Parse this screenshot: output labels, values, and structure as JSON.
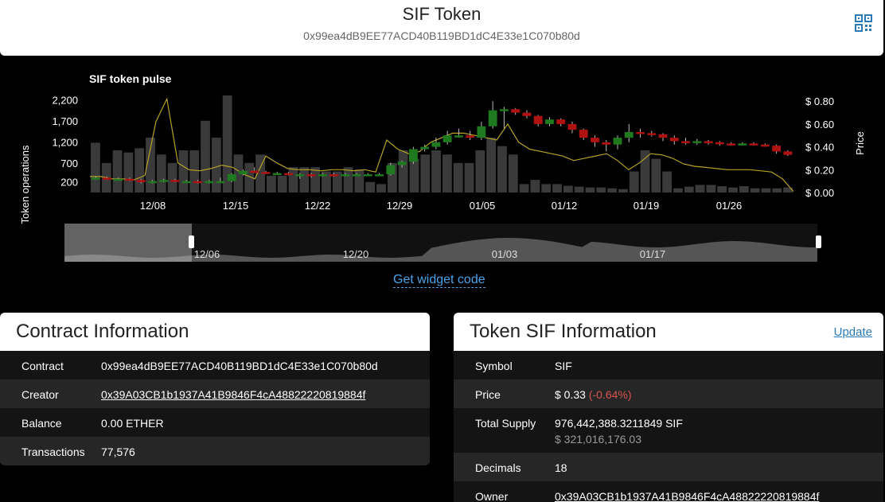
{
  "header": {
    "title": "SIF Token",
    "address": "0x99ea4dB9EE77ACD40B119BD1dC4E33e1C070b80d",
    "qr_icon": "qr-code-icon"
  },
  "chart_data": {
    "type": "candlestick+bar+line",
    "title": "SIF token pulse",
    "ylabel_left": "Token operations",
    "ylabel_right": "Price",
    "left_ticks": [
      "2,200",
      "1,700",
      "1,200",
      "700",
      "200"
    ],
    "right_ticks": [
      "$ 0.80",
      "$ 0.60",
      "$ 0.40",
      "$ 0.20",
      "$ 0.00"
    ],
    "x_ticks": [
      "12/08",
      "12/15",
      "12/22",
      "12/29",
      "01/05",
      "01/12",
      "01/19",
      "01/26"
    ],
    "navigator_ticks": [
      "12/06",
      "12/20",
      "01/03",
      "01/17"
    ],
    "operations": [
      1180,
      700,
      1000,
      950,
      1050,
      1300,
      900,
      700,
      1000,
      1000,
      1700,
      1300,
      2300,
      900,
      700,
      900,
      400,
      400,
      600,
      600,
      600,
      500,
      500,
      600,
      550,
      250,
      200,
      700,
      1000,
      800,
      900,
      1000,
      900,
      700,
      700,
      1000,
      1300,
      1100,
      900,
      200,
      300,
      200,
      200,
      160,
      140,
      120,
      120,
      100,
      80,
      500,
      1000,
      800,
      500,
      100,
      140,
      180,
      180,
      150,
      120,
      150,
      100,
      100,
      100,
      120
    ],
    "price_line": [
      0.14,
      0.14,
      0.12,
      0.12,
      0.11,
      0.15,
      0.62,
      0.82,
      0.26,
      0.2,
      0.19,
      0.21,
      0.24,
      0.22,
      0.16,
      0.12,
      0.32,
      0.26,
      0.21,
      0.2,
      0.2,
      0.19,
      0.2,
      0.2,
      0.19,
      0.2,
      0.18,
      0.46,
      0.38,
      0.34,
      0.36,
      0.44,
      0.48,
      0.52,
      0.52,
      0.5,
      0.48,
      0.46,
      0.6,
      0.44,
      0.38,
      0.36,
      0.34,
      0.32,
      0.28,
      0.3,
      0.32,
      0.34,
      0.28,
      0.2,
      0.26,
      0.34,
      0.33,
      0.3,
      0.25,
      0.23,
      0.22,
      0.21,
      0.2,
      0.2,
      0.2,
      0.19,
      0.18,
      0.12,
      0.01
    ],
    "candles": [
      [
        0.12,
        0.13,
        0.11,
        0.14
      ],
      [
        0.13,
        0.12,
        0.11,
        0.14
      ],
      [
        0.12,
        0.12,
        0.11,
        0.13
      ],
      [
        0.12,
        0.11,
        0.1,
        0.13
      ],
      [
        0.11,
        0.09,
        0.08,
        0.12
      ],
      [
        0.09,
        0.1,
        0.08,
        0.11
      ],
      [
        0.1,
        0.11,
        0.09,
        0.12
      ],
      [
        0.11,
        0.1,
        0.09,
        0.12
      ],
      [
        0.1,
        0.1,
        0.09,
        0.11
      ],
      [
        0.1,
        0.09,
        0.08,
        0.11
      ],
      [
        0.09,
        0.1,
        0.08,
        0.11
      ],
      [
        0.1,
        0.1,
        0.09,
        0.13
      ],
      [
        0.1,
        0.16,
        0.09,
        0.17
      ],
      [
        0.16,
        0.19,
        0.15,
        0.2
      ],
      [
        0.19,
        0.18,
        0.17,
        0.22
      ],
      [
        0.18,
        0.17,
        0.16,
        0.19
      ],
      [
        0.17,
        0.17,
        0.16,
        0.18
      ],
      [
        0.17,
        0.16,
        0.15,
        0.18
      ],
      [
        0.16,
        0.16,
        0.12,
        0.17
      ],
      [
        0.16,
        0.15,
        0.13,
        0.17
      ],
      [
        0.15,
        0.16,
        0.14,
        0.17
      ],
      [
        0.16,
        0.15,
        0.14,
        0.17
      ],
      [
        0.15,
        0.16,
        0.14,
        0.17
      ],
      [
        0.16,
        0.16,
        0.15,
        0.17
      ],
      [
        0.16,
        0.16,
        0.15,
        0.17
      ],
      [
        0.16,
        0.16,
        0.15,
        0.17
      ],
      [
        0.16,
        0.24,
        0.15,
        0.26
      ],
      [
        0.24,
        0.27,
        0.22,
        0.28
      ],
      [
        0.27,
        0.38,
        0.25,
        0.4
      ],
      [
        0.38,
        0.4,
        0.36,
        0.42
      ],
      [
        0.4,
        0.44,
        0.38,
        0.48
      ],
      [
        0.44,
        0.5,
        0.42,
        0.54
      ],
      [
        0.5,
        0.5,
        0.48,
        0.56
      ],
      [
        0.5,
        0.48,
        0.46,
        0.54
      ],
      [
        0.48,
        0.58,
        0.46,
        0.62
      ],
      [
        0.58,
        0.72,
        0.56,
        0.8
      ],
      [
        0.72,
        0.73,
        0.56,
        0.75
      ],
      [
        0.73,
        0.7,
        0.68,
        0.74
      ],
      [
        0.7,
        0.67,
        0.65,
        0.72
      ],
      [
        0.67,
        0.6,
        0.58,
        0.68
      ],
      [
        0.6,
        0.64,
        0.58,
        0.66
      ],
      [
        0.64,
        0.6,
        0.58,
        0.65
      ],
      [
        0.6,
        0.55,
        0.52,
        0.62
      ],
      [
        0.55,
        0.48,
        0.46,
        0.56
      ],
      [
        0.48,
        0.44,
        0.4,
        0.5
      ],
      [
        0.44,
        0.42,
        0.36,
        0.46
      ],
      [
        0.42,
        0.48,
        0.38,
        0.5
      ],
      [
        0.48,
        0.53,
        0.44,
        0.6
      ],
      [
        0.53,
        0.52,
        0.48,
        0.56
      ],
      [
        0.52,
        0.51,
        0.49,
        0.54
      ],
      [
        0.51,
        0.48,
        0.45,
        0.52
      ],
      [
        0.48,
        0.45,
        0.42,
        0.5
      ],
      [
        0.45,
        0.44,
        0.42,
        0.48
      ],
      [
        0.44,
        0.45,
        0.42,
        0.47
      ],
      [
        0.45,
        0.44,
        0.42,
        0.46
      ],
      [
        0.44,
        0.43,
        0.41,
        0.45
      ],
      [
        0.43,
        0.42,
        0.41,
        0.44
      ],
      [
        0.42,
        0.43,
        0.41,
        0.44
      ],
      [
        0.43,
        0.42,
        0.41,
        0.44
      ],
      [
        0.42,
        0.41,
        0.4,
        0.43
      ],
      [
        0.41,
        0.36,
        0.34,
        0.42
      ],
      [
        0.36,
        0.33,
        0.32,
        0.37
      ]
    ],
    "colors": {
      "up": "#1f7a1f",
      "down": "#b01212",
      "price_line": "#b5a225",
      "bars": "#3a3a3a"
    }
  },
  "widget_link": "Get widget code",
  "contract": {
    "title": "Contract Information",
    "rows": [
      {
        "key": "Contract",
        "value": "0x99ea4dB9EE77ACD40B119BD1dC4E33e1C070b80d"
      },
      {
        "key": "Creator",
        "value": "0x39A03CB1b1937A41B9846F4cA48822220819884f"
      },
      {
        "key": "Balance",
        "value": "0.00 ETHER"
      },
      {
        "key": "Transactions",
        "value": "77,576"
      }
    ]
  },
  "token": {
    "title": "Token SIF Information",
    "update_label": "Update",
    "rows": [
      {
        "key": "Symbol",
        "value": "SIF"
      },
      {
        "key": "Price",
        "value": "$ 0.33",
        "change": "(-0.64%)"
      },
      {
        "key": "Total Supply",
        "value": "976,442,388.3211849 SIF",
        "sub": "$ 321,016,176.03"
      },
      {
        "key": "Decimals",
        "value": "18"
      },
      {
        "key": "Owner",
        "value": "0x39A03CB1b1937A41B9846F4cA48822220819884f"
      }
    ]
  }
}
